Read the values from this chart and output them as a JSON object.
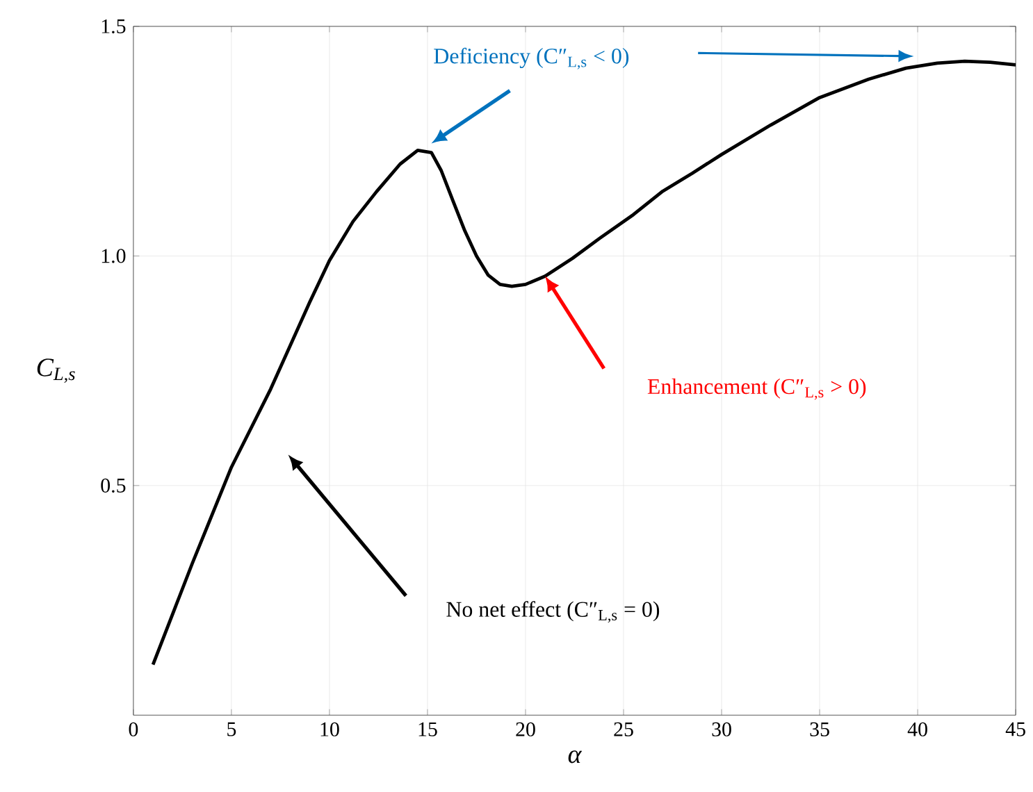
{
  "chart_data": {
    "type": "line",
    "xlabel": "α",
    "ylabel": "C$_{L,s}$",
    "x": [
      1,
      3,
      5,
      7,
      9,
      10,
      11.2,
      12.4,
      13.6,
      14.5,
      15.2,
      15.7,
      16.3,
      16.9,
      17.5,
      18.1,
      18.7,
      19.3,
      20,
      21,
      22.4,
      23.8,
      25.5,
      27,
      28.5,
      30,
      32.5,
      35,
      37.5,
      39.4,
      41,
      42.4,
      43.7,
      45
    ],
    "series": [
      {
        "color": "#000000",
        "values": [
          0.11,
          0.33,
          0.54,
          0.71,
          0.9,
          0.99,
          1.075,
          1.14,
          1.2,
          1.23,
          1.225,
          1.186,
          1.12,
          1.055,
          1.0,
          0.958,
          0.938,
          0.934,
          0.938,
          0.956,
          0.995,
          1.039,
          1.09,
          1.141,
          1.18,
          1.221,
          1.285,
          1.345,
          1.385,
          1.409,
          1.42,
          1.424,
          1.422,
          1.416
        ]
      }
    ],
    "xlim": [
      0,
      45
    ],
    "xticks": [
      0,
      5,
      10,
      15,
      20,
      25,
      30,
      35,
      40,
      45
    ],
    "ylim": [
      0,
      1.5
    ],
    "yticks": [
      0.5,
      {
        "value": 1,
        "label": "1.0"
      },
      1.5
    ],
    "grid": true,
    "line_style": "solid",
    "marker": "none",
    "annotations": [
      "Deficiency (C″$_{L,s}$ < 0)",
      "Enhancement (C″$_{L,s}$ > 0)",
      "No net effect (C″$_{L,s}$ = 0)"
    ]
  }
}
